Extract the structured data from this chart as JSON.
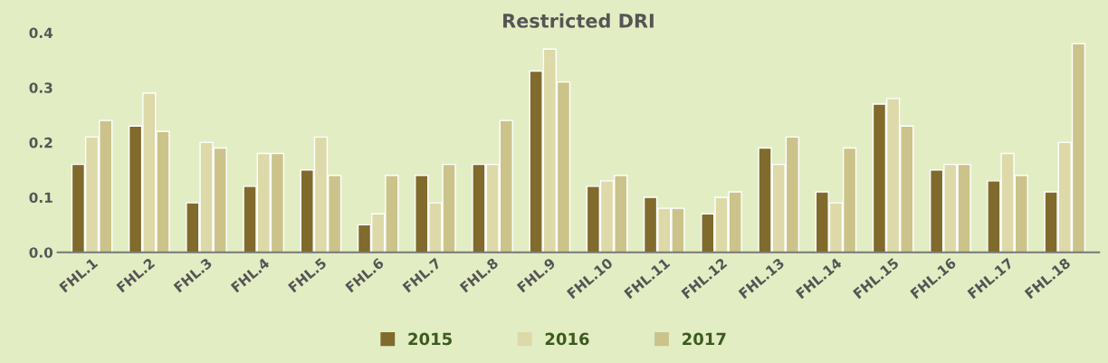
{
  "chart_data": {
    "type": "bar",
    "title": "Restricted DRI",
    "categories": [
      "FHL.1",
      "FHL.2",
      "FHL.3",
      "FHL.4",
      "FHL.5",
      "FHL.6",
      "FHL.7",
      "FHL.8",
      "FHL.9",
      "FHL.10",
      "FHL.11",
      "FHL.12",
      "FHL.13",
      "FHL.14",
      "FHL.15",
      "FHL.16",
      "FHL.17",
      "FHL.18"
    ],
    "series": [
      {
        "name": "2015",
        "color": "#806a2c",
        "values": [
          0.16,
          0.23,
          0.09,
          0.12,
          0.15,
          0.05,
          0.14,
          0.16,
          0.33,
          0.12,
          0.1,
          0.07,
          0.19,
          0.11,
          0.27,
          0.15,
          0.13,
          0.11
        ]
      },
      {
        "name": "2016",
        "color": "#ddd9a8",
        "values": [
          0.21,
          0.29,
          0.2,
          0.18,
          0.21,
          0.07,
          0.09,
          0.16,
          0.37,
          0.13,
          0.08,
          0.1,
          0.16,
          0.09,
          0.28,
          0.16,
          0.18,
          0.2
        ]
      },
      {
        "name": "2017",
        "color": "#cbc38a",
        "values": [
          0.24,
          0.22,
          0.19,
          0.18,
          0.14,
          0.14,
          0.16,
          0.24,
          0.31,
          0.14,
          0.08,
          0.11,
          0.21,
          0.19,
          0.23,
          0.16,
          0.14,
          0.38
        ]
      }
    ],
    "ylim": [
      0,
      0.4
    ],
    "yticks": [
      {
        "value": 0,
        "label": "0.0"
      },
      {
        "value": 0.1,
        "label": "0.1"
      },
      {
        "value": 0.2,
        "label": "0.2"
      },
      {
        "value": 0.3,
        "label": "0.3"
      },
      {
        "value": 0.4,
        "label": "0.4"
      }
    ],
    "grid": false,
    "legend": "bottom"
  }
}
